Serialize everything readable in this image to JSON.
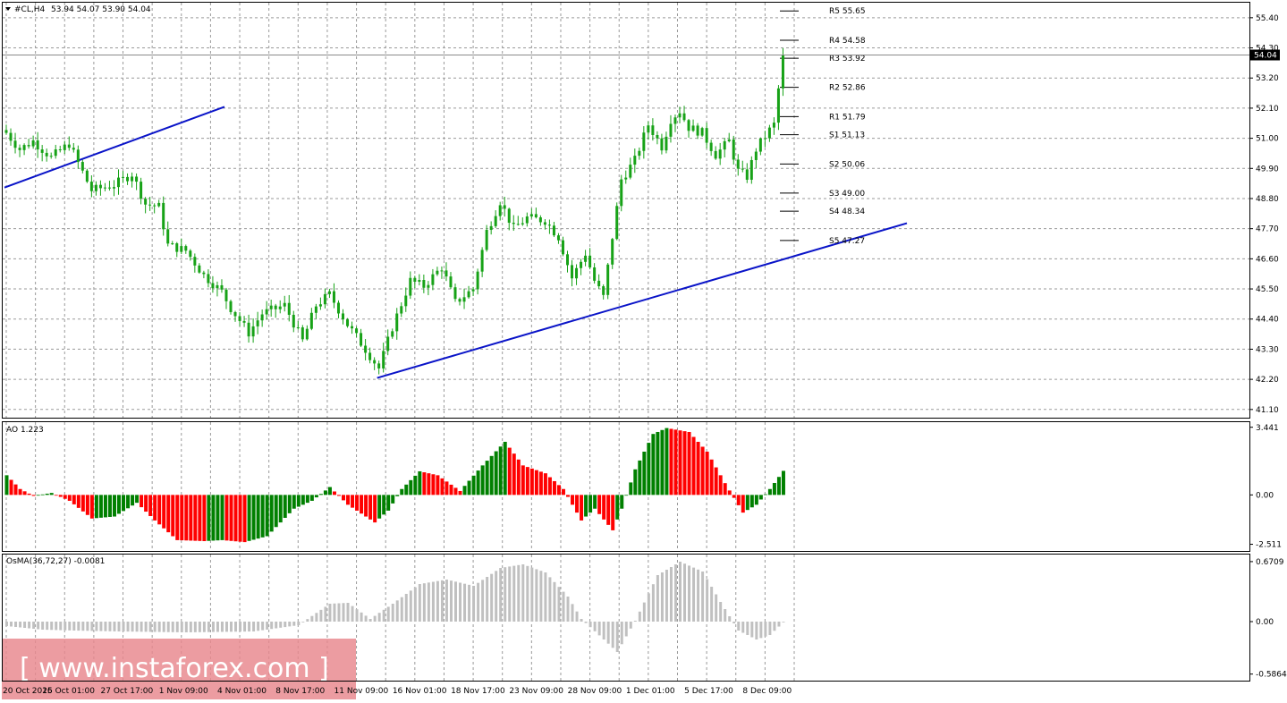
{
  "chart_data": {
    "type": "candlestick",
    "symbol_label": "#CL,H4",
    "ohlc_label": "53.94 54.07 53.90 54.04",
    "last_price_label": "54.04",
    "last_price": 54.04,
    "colors": {
      "bull": "#17a217",
      "bear": "#17a217",
      "background": "#ffffff",
      "trendline": "#0a14c8",
      "pivot_tick": "#000000",
      "ao_up": "#008000",
      "ao_down": "#ff0000",
      "osma": "#c0c0c0",
      "watermark_box": "#e8868c"
    },
    "price_axis": {
      "min": 40.8,
      "max": 55.95,
      "ticks": [
        "55.40",
        "54.30",
        "53.20",
        "52.10",
        "51.00",
        "49.90",
        "48.80",
        "47.70",
        "46.60",
        "45.50",
        "44.40",
        "43.30",
        "42.20",
        "41.10"
      ]
    },
    "time_axis": {
      "bars": 174,
      "labels": [
        {
          "bar": 0,
          "text": "20 Oct 2016"
        },
        {
          "bar": 13,
          "text": "25 Oct 01:00"
        },
        {
          "bar": 26,
          "text": "27 Oct 17:00"
        },
        {
          "bar": 39,
          "text": "1 Nov 09:00"
        },
        {
          "bar": 52,
          "text": "4 Nov 01:00"
        },
        {
          "bar": 65,
          "text": "8 Nov 17:00"
        },
        {
          "bar": 78,
          "text": "11 Nov 09:00"
        },
        {
          "bar": 91,
          "text": "16 Nov 01:00"
        },
        {
          "bar": 104,
          "text": "18 Nov 17:00"
        },
        {
          "bar": 117,
          "text": "23 Nov 09:00"
        },
        {
          "bar": 130,
          "text": "28 Nov 09:00"
        },
        {
          "bar": 143,
          "text": "1 Dec 01:00"
        },
        {
          "bar": 156,
          "text": "5 Dec 17:00"
        },
        {
          "bar": 169,
          "text": "8 Dec 09:00"
        }
      ]
    },
    "price_anchors": [
      {
        "bar": 0,
        "close": 51.2
      },
      {
        "bar": 3,
        "close": 50.6
      },
      {
        "bar": 6,
        "close": 50.9
      },
      {
        "bar": 10,
        "close": 50.3
      },
      {
        "bar": 14,
        "close": 50.8
      },
      {
        "bar": 16,
        "close": 50.1
      },
      {
        "bar": 19,
        "close": 49.1
      },
      {
        "bar": 24,
        "close": 49.3
      },
      {
        "bar": 28,
        "close": 49.7
      },
      {
        "bar": 31,
        "close": 48.6
      },
      {
        "bar": 34,
        "close": 48.5
      },
      {
        "bar": 36,
        "close": 47.1
      },
      {
        "bar": 40,
        "close": 46.9
      },
      {
        "bar": 44,
        "close": 46.0
      },
      {
        "bar": 48,
        "close": 45.4
      },
      {
        "bar": 50,
        "close": 44.8
      },
      {
        "bar": 54,
        "close": 43.9
      },
      {
        "bar": 57,
        "close": 44.6
      },
      {
        "bar": 62,
        "close": 44.9
      },
      {
        "bar": 66,
        "close": 43.6
      },
      {
        "bar": 69,
        "close": 44.9
      },
      {
        "bar": 72,
        "close": 45.3
      },
      {
        "bar": 76,
        "close": 44.2
      },
      {
        "bar": 80,
        "close": 43.3
      },
      {
        "bar": 83,
        "close": 42.6
      },
      {
        "bar": 86,
        "close": 44.1
      },
      {
        "bar": 90,
        "close": 45.8
      },
      {
        "bar": 93,
        "close": 45.6
      },
      {
        "bar": 97,
        "close": 46.3
      },
      {
        "bar": 100,
        "close": 45.0
      },
      {
        "bar": 104,
        "close": 45.5
      },
      {
        "bar": 107,
        "close": 47.6
      },
      {
        "bar": 110,
        "close": 48.7
      },
      {
        "bar": 113,
        "close": 47.7
      },
      {
        "bar": 116,
        "close": 48.1
      },
      {
        "bar": 120,
        "close": 48.0
      },
      {
        "bar": 123,
        "close": 47.4
      },
      {
        "bar": 126,
        "close": 45.9
      },
      {
        "bar": 129,
        "close": 46.8
      },
      {
        "bar": 131,
        "close": 45.8
      },
      {
        "bar": 133,
        "close": 45.2
      },
      {
        "bar": 135,
        "close": 47.4
      },
      {
        "bar": 137,
        "close": 49.5
      },
      {
        "bar": 140,
        "close": 50.2
      },
      {
        "bar": 143,
        "close": 51.5
      },
      {
        "bar": 146,
        "close": 50.7
      },
      {
        "bar": 148,
        "close": 51.7
      },
      {
        "bar": 150,
        "close": 52.0
      },
      {
        "bar": 152,
        "close": 51.4
      },
      {
        "bar": 155,
        "close": 51.2
      },
      {
        "bar": 158,
        "close": 50.4
      },
      {
        "bar": 161,
        "close": 50.9
      },
      {
        "bar": 163,
        "close": 49.8
      },
      {
        "bar": 165,
        "close": 49.6
      },
      {
        "bar": 167,
        "close": 50.6
      },
      {
        "bar": 170,
        "close": 51.3
      },
      {
        "bar": 171,
        "close": 51.5
      },
      {
        "bar": 172,
        "close": 52.8
      },
      {
        "bar": 173,
        "close": 54.04
      }
    ],
    "trendlines": [
      {
        "bar1": 0,
        "price1": 49.2,
        "bar2": 49,
        "price2": 52.15
      },
      {
        "bar1": 83,
        "price1": 42.25,
        "bar2": 201,
        "price2": 47.9
      }
    ],
    "pivot_levels": [
      {
        "label": "R5 55.65",
        "value": 55.65
      },
      {
        "label": "R4 54.58",
        "value": 54.58
      },
      {
        "label": "R3 53.92",
        "value": 53.92
      },
      {
        "label": "R2 52.86",
        "value": 52.86
      },
      {
        "label": "R1 51.79",
        "value": 51.79
      },
      {
        "label": "S1 51.13",
        "value": 51.13
      },
      {
        "label": "S2 50.06",
        "value": 50.06
      },
      {
        "label": "S3 49.00",
        "value": 49.0
      },
      {
        "label": "S4 48.34",
        "value": 48.34
      },
      {
        "label": "S5 47.27",
        "value": 47.27
      }
    ],
    "ao": {
      "label": "AO 1.223",
      "ticks": [
        "3.441",
        "0.00",
        "-2.511"
      ],
      "min": -2.85,
      "max": 3.7,
      "anchors": [
        {
          "bar": 0,
          "value": 1.0
        },
        {
          "bar": 3,
          "value": 0.3
        },
        {
          "bar": 6,
          "value": -0.05
        },
        {
          "bar": 10,
          "value": 0.1
        },
        {
          "bar": 14,
          "value": -0.3
        },
        {
          "bar": 19,
          "value": -1.2
        },
        {
          "bar": 24,
          "value": -1.1
        },
        {
          "bar": 29,
          "value": -0.4
        },
        {
          "bar": 33,
          "value": -1.3
        },
        {
          "bar": 38,
          "value": -2.3
        },
        {
          "bar": 44,
          "value": -2.35
        },
        {
          "bar": 48,
          "value": -2.3
        },
        {
          "bar": 53,
          "value": -2.4
        },
        {
          "bar": 58,
          "value": -2.1
        },
        {
          "bar": 64,
          "value": -0.7
        },
        {
          "bar": 68,
          "value": -0.3
        },
        {
          "bar": 72,
          "value": 0.4
        },
        {
          "bar": 76,
          "value": -0.5
        },
        {
          "bar": 82,
          "value": -1.4
        },
        {
          "bar": 85,
          "value": -0.8
        },
        {
          "bar": 88,
          "value": 0.3
        },
        {
          "bar": 92,
          "value": 1.2
        },
        {
          "bar": 96,
          "value": 1.0
        },
        {
          "bar": 101,
          "value": 0.2
        },
        {
          "bar": 106,
          "value": 1.5
        },
        {
          "bar": 111,
          "value": 2.7
        },
        {
          "bar": 115,
          "value": 1.5
        },
        {
          "bar": 120,
          "value": 1.1
        },
        {
          "bar": 124,
          "value": 0.3
        },
        {
          "bar": 128,
          "value": -1.3
        },
        {
          "bar": 131,
          "value": -0.7
        },
        {
          "bar": 135,
          "value": -1.8
        },
        {
          "bar": 137,
          "value": -0.7
        },
        {
          "bar": 140,
          "value": 1.3
        },
        {
          "bar": 144,
          "value": 3.1
        },
        {
          "bar": 147,
          "value": 3.4
        },
        {
          "bar": 152,
          "value": 3.2
        },
        {
          "bar": 156,
          "value": 2.2
        },
        {
          "bar": 160,
          "value": 0.6
        },
        {
          "bar": 164,
          "value": -0.9
        },
        {
          "bar": 167,
          "value": -0.5
        },
        {
          "bar": 170,
          "value": 0.3
        },
        {
          "bar": 173,
          "value": 1.223
        }
      ]
    },
    "osma": {
      "label": "OsMA(36,72,27) -0.0081",
      "ticks": [
        "0.6709",
        "0.00",
        "-0.5864"
      ],
      "min": -0.66,
      "max": 0.75,
      "anchors": [
        {
          "bar": 0,
          "value": -0.05
        },
        {
          "bar": 8,
          "value": -0.09
        },
        {
          "bar": 15,
          "value": -0.1
        },
        {
          "bar": 25,
          "value": -0.11
        },
        {
          "bar": 40,
          "value": -0.12
        },
        {
          "bar": 55,
          "value": -0.11
        },
        {
          "bar": 65,
          "value": -0.04
        },
        {
          "bar": 72,
          "value": 0.2
        },
        {
          "bar": 76,
          "value": 0.21
        },
        {
          "bar": 81,
          "value": 0.03
        },
        {
          "bar": 86,
          "value": 0.2
        },
        {
          "bar": 92,
          "value": 0.42
        },
        {
          "bar": 98,
          "value": 0.47
        },
        {
          "bar": 104,
          "value": 0.4
        },
        {
          "bar": 110,
          "value": 0.6
        },
        {
          "bar": 115,
          "value": 0.64
        },
        {
          "bar": 120,
          "value": 0.55
        },
        {
          "bar": 125,
          "value": 0.28
        },
        {
          "bar": 128,
          "value": 0.03
        },
        {
          "bar": 133,
          "value": -0.2
        },
        {
          "bar": 136,
          "value": -0.34
        },
        {
          "bar": 140,
          "value": 0.01
        },
        {
          "bar": 145,
          "value": 0.52
        },
        {
          "bar": 150,
          "value": 0.67
        },
        {
          "bar": 155,
          "value": 0.56
        },
        {
          "bar": 159,
          "value": 0.22
        },
        {
          "bar": 163,
          "value": -0.1
        },
        {
          "bar": 167,
          "value": -0.2
        },
        {
          "bar": 170,
          "value": -0.15
        },
        {
          "bar": 173,
          "value": -0.0081
        }
      ]
    }
  },
  "watermark": {
    "text": "[ www.instaforex.com ]"
  }
}
